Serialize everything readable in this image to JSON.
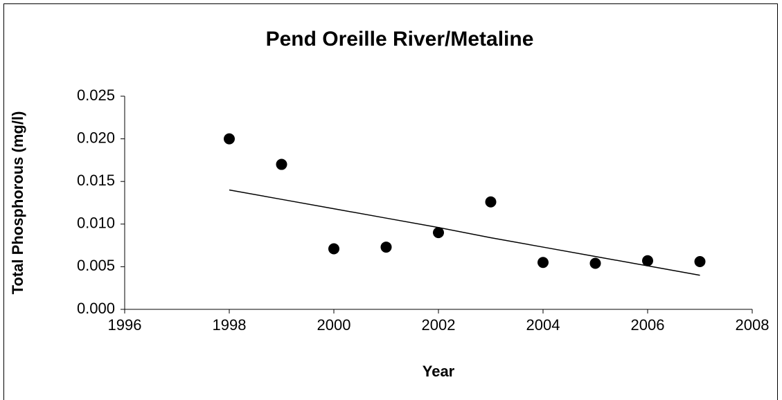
{
  "chart_data": {
    "type": "scatter",
    "title": "Pend Oreille River/Metaline",
    "x_label": "Year",
    "y_label": "Total Phosphorous (mg/l)",
    "x": [
      1998,
      1999,
      2000,
      2001,
      2002,
      2003,
      2004,
      2005,
      2006,
      2007
    ],
    "values": [
      0.02,
      0.017,
      0.0071,
      0.0073,
      0.009,
      0.0126,
      0.0055,
      0.0054,
      0.0057,
      0.0056
    ],
    "color": "#000000",
    "trend": {
      "x": [
        1998,
        1999,
        2000,
        2001,
        2002,
        2003,
        2004,
        2005,
        2006,
        2007
      ],
      "values": [
        0.014,
        0.0129,
        0.0118,
        0.0107,
        0.0096,
        0.0084,
        0.0073,
        0.0062,
        0.0051,
        0.004
      ]
    },
    "xlim": [
      1996,
      2008
    ],
    "xticks": [
      1996,
      1998,
      2000,
      2002,
      2004,
      2006,
      2008
    ],
    "ylim": [
      0,
      0.025
    ],
    "yticks": [
      {
        "value": 0,
        "label": "0.000"
      },
      {
        "value": 0.005,
        "label": "0.005"
      },
      {
        "value": 0.01,
        "label": "0.010"
      },
      {
        "value": 0.015,
        "label": "0.015"
      },
      {
        "value": 0.02,
        "label": "0.020"
      },
      {
        "value": 0.025,
        "label": "0.025"
      }
    ]
  }
}
